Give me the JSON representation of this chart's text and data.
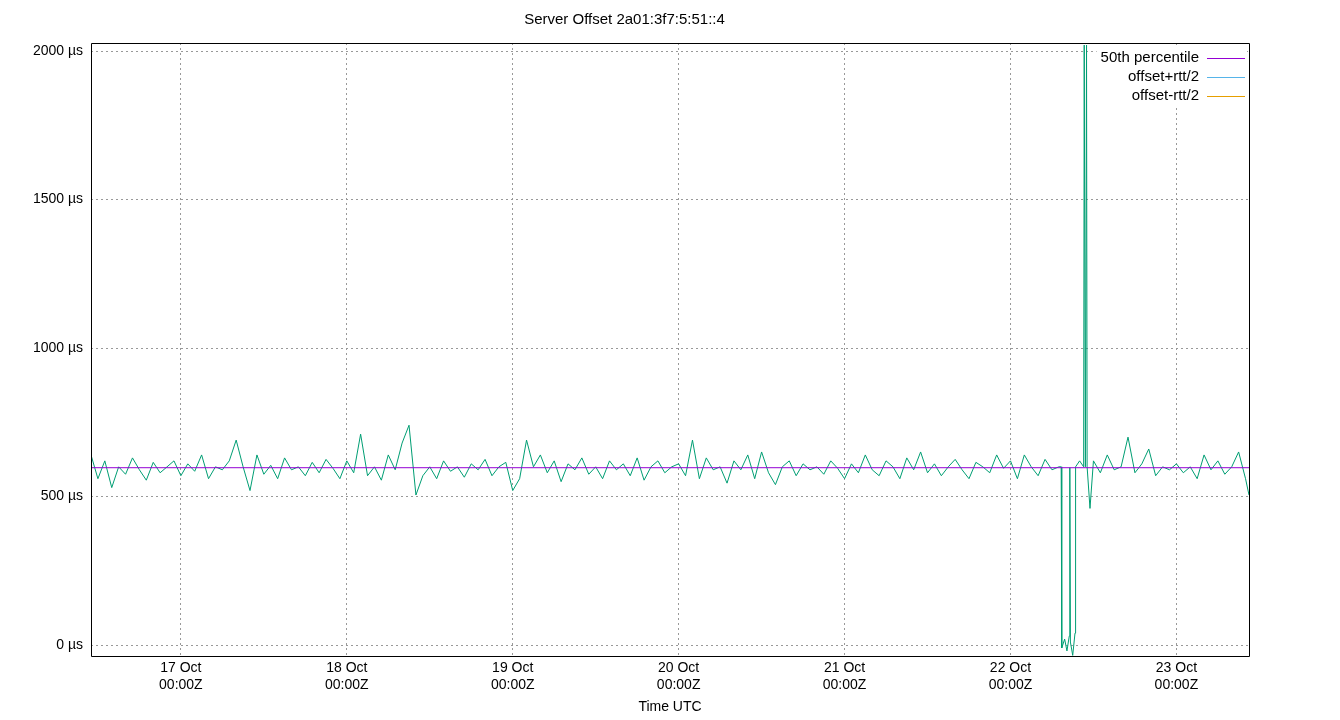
{
  "chart_data": {
    "type": "line",
    "title": "Server Offset 2a01:3f7:5:51::4",
    "xlabel": "Time UTC",
    "xlim": [
      "--10-16T11:00",
      "--10-23T10:30"
    ],
    "xticks": [
      {
        "value": "--10-17T00:00",
        "label": "17 Oct\n00:00Z"
      },
      {
        "value": "--10-18T00:00",
        "label": "18 Oct\n00:00Z"
      },
      {
        "value": "--10-19T00:00",
        "label": "19 Oct\n00:00Z"
      },
      {
        "value": "--10-20T00:00",
        "label": "20 Oct\n00:00Z"
      },
      {
        "value": "--10-21T00:00",
        "label": "21 Oct\n00:00Z"
      },
      {
        "value": "--10-22T00:00",
        "label": "22 Oct\n00:00Z"
      },
      {
        "value": "--10-23T00:00",
        "label": "23 Oct\n00:00Z"
      }
    ],
    "ylim": [
      -37,
      2027
    ],
    "yticks": [
      {
        "value": 0,
        "label": "0 µs"
      },
      {
        "value": 500,
        "label": "500 µs"
      },
      {
        "value": 1000,
        "label": "1000 µs"
      },
      {
        "value": 1500,
        "label": "1500 µs"
      },
      {
        "value": 2000,
        "label": "2000 µs"
      }
    ],
    "grid": true,
    "legend": "top right",
    "marker": "none",
    "line_style": "solid",
    "series": [
      {
        "name": "50th percentile",
        "color": "#9400d3",
        "x": [
          "--10-16T11:00",
          "--10-23T10:30"
        ],
        "values": [
          597,
          597
        ]
      },
      {
        "color": "#009e73",
        "x": [
          "--10-16T11:00",
          "--10-16T12:00",
          "--10-16T13:00",
          "--10-16T14:00",
          "--10-16T15:00",
          "--10-16T16:00",
          "--10-16T17:00",
          "--10-16T18:00",
          "--10-16T19:00",
          "--10-16T20:00",
          "--10-16T21:00",
          "--10-16T22:00",
          "--10-16T23:00",
          "--10-17T00:00",
          "--10-17T01:00",
          "--10-17T02:00",
          "--10-17T03:00",
          "--10-17T04:00",
          "--10-17T05:00",
          "--10-17T06:00",
          "--10-17T07:00",
          "--10-17T08:00",
          "--10-17T09:00",
          "--10-17T10:00",
          "--10-17T11:00",
          "--10-17T12:00",
          "--10-17T13:00",
          "--10-17T14:00",
          "--10-17T15:00",
          "--10-17T16:00",
          "--10-17T17:00",
          "--10-17T18:00",
          "--10-17T19:00",
          "--10-17T20:00",
          "--10-17T21:00",
          "--10-17T22:00",
          "--10-17T23:00",
          "--10-18T00:00",
          "--10-18T01:00",
          "--10-18T02:00",
          "--10-18T03:00",
          "--10-18T04:00",
          "--10-18T05:00",
          "--10-18T06:00",
          "--10-18T07:00",
          "--10-18T08:00",
          "--10-18T09:00",
          "--10-18T10:00",
          "--10-18T11:00",
          "--10-18T12:00",
          "--10-18T13:00",
          "--10-18T14:00",
          "--10-18T15:00",
          "--10-18T16:00",
          "--10-18T17:00",
          "--10-18T18:00",
          "--10-18T19:00",
          "--10-18T20:00",
          "--10-18T21:00",
          "--10-18T22:00",
          "--10-18T23:00",
          "--10-19T00:00",
          "--10-19T01:00",
          "--10-19T02:00",
          "--10-19T03:00",
          "--10-19T04:00",
          "--10-19T05:00",
          "--10-19T06:00",
          "--10-19T07:00",
          "--10-19T08:00",
          "--10-19T09:00",
          "--10-19T10:00",
          "--10-19T11:00",
          "--10-19T12:00",
          "--10-19T13:00",
          "--10-19T14:00",
          "--10-19T15:00",
          "--10-19T16:00",
          "--10-19T17:00",
          "--10-19T18:00",
          "--10-19T19:00",
          "--10-19T20:00",
          "--10-19T21:00",
          "--10-19T22:00",
          "--10-19T23:00",
          "--10-20T00:00",
          "--10-20T01:00",
          "--10-20T02:00",
          "--10-20T03:00",
          "--10-20T04:00",
          "--10-20T05:00",
          "--10-20T06:00",
          "--10-20T07:00",
          "--10-20T08:00",
          "--10-20T09:00",
          "--10-20T10:00",
          "--10-20T11:00",
          "--10-20T12:00",
          "--10-20T13:00",
          "--10-20T14:00",
          "--10-20T15:00",
          "--10-20T16:00",
          "--10-20T17:00",
          "--10-20T18:00",
          "--10-20T19:00",
          "--10-20T20:00",
          "--10-20T21:00",
          "--10-20T22:00",
          "--10-20T23:00",
          "--10-21T00:00",
          "--10-21T01:00",
          "--10-21T02:00",
          "--10-21T03:00",
          "--10-21T04:00",
          "--10-21T05:00",
          "--10-21T06:00",
          "--10-21T07:00",
          "--10-21T08:00",
          "--10-21T09:00",
          "--10-21T10:00",
          "--10-21T11:00",
          "--10-21T12:00",
          "--10-21T13:00",
          "--10-21T14:00",
          "--10-21T15:00",
          "--10-21T16:00",
          "--10-21T17:00",
          "--10-21T18:00",
          "--10-21T19:00",
          "--10-21T20:00",
          "--10-21T21:00",
          "--10-21T22:00",
          "--10-21T23:00",
          "--10-22T00:00",
          "--10-22T01:00",
          "--10-22T02:00",
          "--10-22T03:00",
          "--10-22T04:00",
          "--10-22T05:00",
          "--10-22T06:00",
          "--10-22T07:00",
          "--10-22T07:20",
          "--10-22T07:25",
          "--10-22T07:50",
          "--10-22T08:10",
          "--10-22T08:30",
          "--10-22T08:35",
          "--10-22T08:40",
          "--10-22T09:00",
          "--10-22T09:20",
          "--10-22T09:25",
          "--10-22T10:00",
          "--10-22T10:35",
          "--10-22T10:40",
          "--10-22T10:50",
          "--10-22T11:00",
          "--10-22T11:05",
          "--10-22T11:30",
          "--10-22T12:00",
          "--10-22T13:00",
          "--10-22T14:00",
          "--10-22T15:00",
          "--10-22T16:00",
          "--10-22T17:00",
          "--10-22T18:00",
          "--10-22T19:00",
          "--10-22T20:00",
          "--10-22T21:00",
          "--10-22T22:00",
          "--10-22T23:00",
          "--10-23T00:00",
          "--10-23T01:00",
          "--10-23T02:00",
          "--10-23T03:00",
          "--10-23T04:00",
          "--10-23T05:00",
          "--10-23T06:00",
          "--10-23T07:00",
          "--10-23T08:00",
          "--10-23T09:00",
          "--10-23T10:00",
          "--10-23T10:30"
        ],
        "values": [
          640,
          560,
          620,
          530,
          600,
          575,
          630,
          590,
          555,
          615,
          580,
          600,
          620,
          570,
          610,
          585,
          640,
          560,
          600,
          590,
          620,
          690,
          600,
          520,
          640,
          575,
          605,
          560,
          630,
          590,
          600,
          570,
          615,
          580,
          625,
          595,
          560,
          620,
          580,
          710,
          570,
          600,
          555,
          640,
          590,
          680,
          740,
          505,
          570,
          600,
          560,
          620,
          585,
          600,
          565,
          610,
          590,
          625,
          570,
          600,
          615,
          520,
          560,
          690,
          600,
          640,
          580,
          620,
          550,
          610,
          590,
          630,
          575,
          600,
          560,
          620,
          590,
          610,
          570,
          630,
          555,
          600,
          620,
          580,
          600,
          610,
          570,
          690,
          560,
          630,
          590,
          600,
          545,
          620,
          590,
          640,
          560,
          650,
          580,
          540,
          600,
          620,
          570,
          610,
          590,
          600,
          575,
          620,
          595,
          560,
          610,
          580,
          640,
          590,
          570,
          620,
          600,
          560,
          630,
          590,
          650,
          580,
          610,
          570,
          600,
          625,
          590,
          560,
          615,
          600,
          580,
          640,
          595,
          620,
          560,
          640,
          600,
          570,
          625,
          590,
          600,
          600,
          -10,
          20,
          -20,
          30,
          597,
          10,
          -35,
          40,
          600,
          620,
          600,
          2020,
          600,
          2020,
          600,
          460,
          620,
          580,
          640,
          590,
          600,
          700,
          580,
          610,
          660,
          570,
          600,
          590,
          610,
          580,
          600,
          560,
          640,
          590,
          620,
          575,
          600,
          650,
          560,
          505
        ]
      },
      {
        "name": "offset+rtt/2",
        "color": "#56b4e9"
      },
      {
        "name": "offset-rtt/2",
        "color": "#e69f00"
      }
    ]
  }
}
